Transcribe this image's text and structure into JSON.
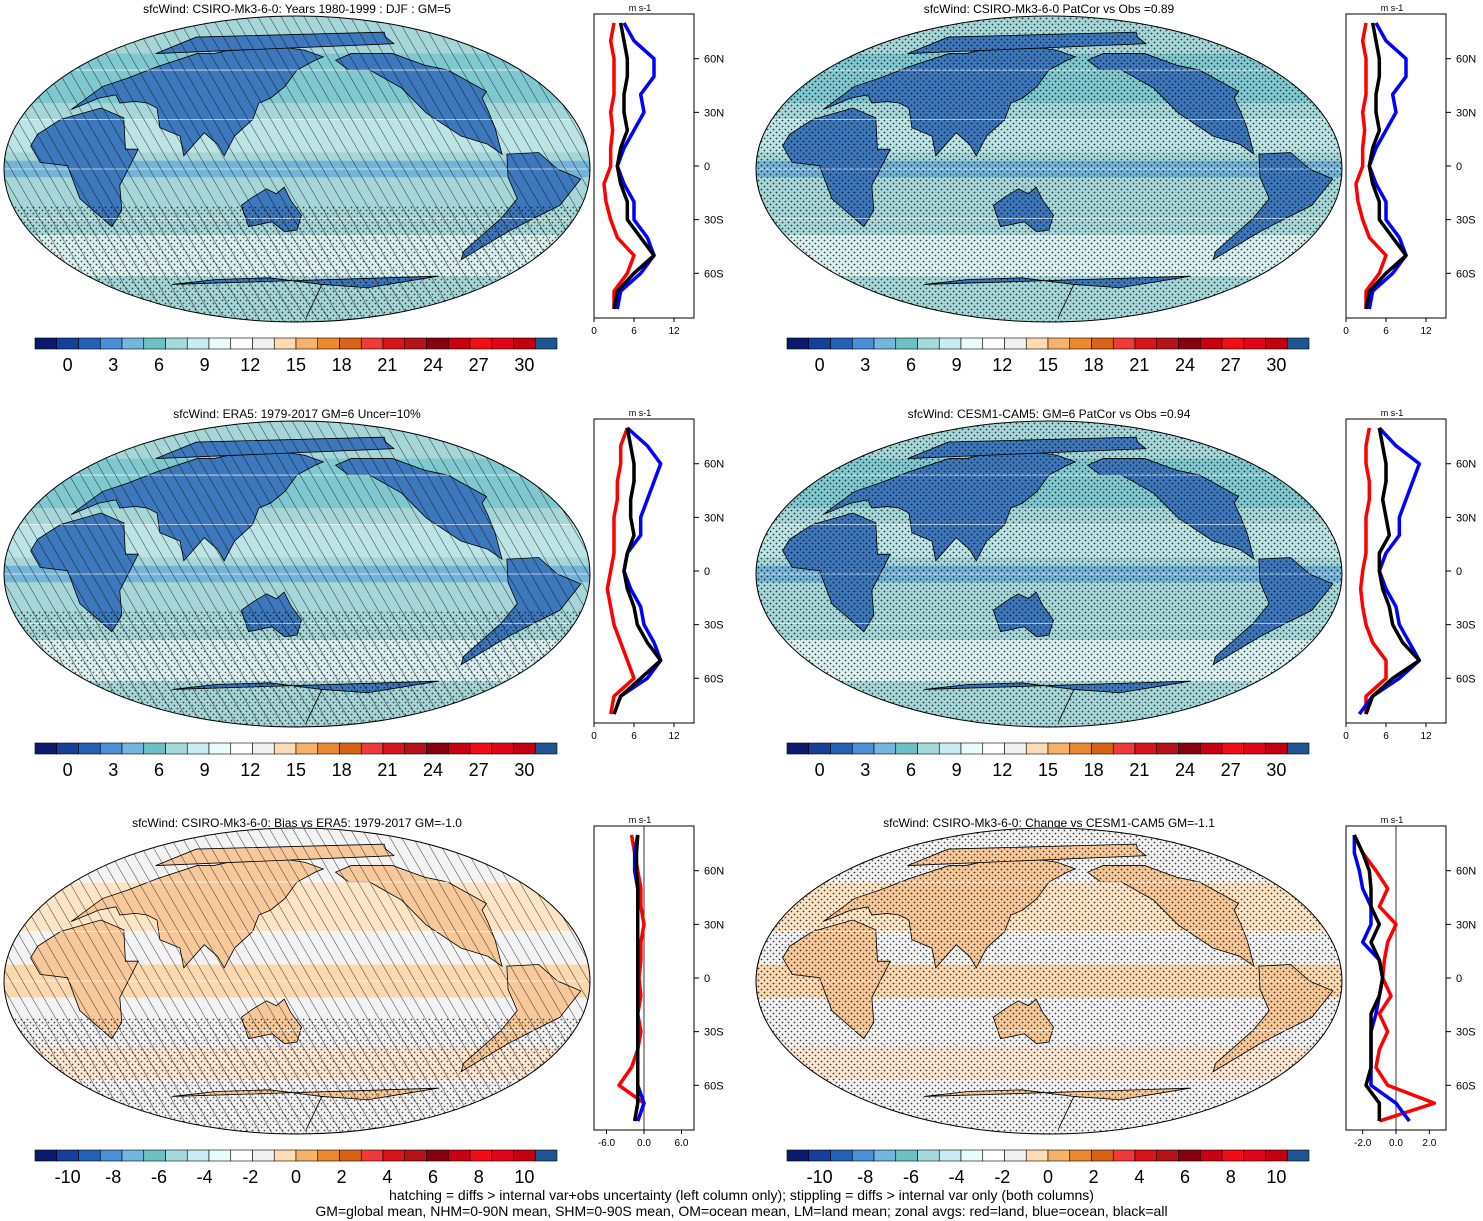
{
  "footer": {
    "line1": "hatching = diffs > internal var+obs uncertainty (left column only); stippling = diffs > internal var only (both columns)",
    "line2": "GM=global mean, NHM=0-90N mean, SHM=0-90S mean, OM=ocean mean, LM=land mean; zonal avgs: red=land, blue=ocean, black=all"
  },
  "units_label": "m s-1",
  "lat_labels": [
    "60N",
    "30N",
    "0",
    "30S",
    "60S"
  ],
  "colors": {
    "land_fill": "#3d78bd",
    "ocean_fill_clim": "#a6d6d8",
    "ocean_fill_diff": "#f3f3f3",
    "land_fill_diff": "#f7c99a",
    "zonal_land": "#ff0000",
    "zonal_ocean": "#0000ff",
    "zonal_all": "#000000"
  },
  "colorbar_clim": {
    "labels": [
      "0",
      "3",
      "6",
      "9",
      "12",
      "15",
      "18",
      "21",
      "24",
      "27",
      "30"
    ],
    "colors": [
      "#0b1a6e",
      "#163f9c",
      "#2462b8",
      "#4b8fd8",
      "#72b6de",
      "#6cc1c5",
      "#a4dadb",
      "#c8ecf1",
      "#e9fbfb",
      "#ffffff",
      "#f1f1f1",
      "#fddbb4",
      "#f6b16b",
      "#ea8a2e",
      "#d66414",
      "#f03a3a",
      "#d9151b",
      "#b5131a",
      "#88000f",
      "#c90012",
      "#f10d16",
      "#e00516",
      "#c3000f",
      "#1e5590"
    ]
  },
  "colorbar_diff": {
    "labels": [
      "-10",
      "-8",
      "-6",
      "-4",
      "-2",
      "0",
      "2",
      "4",
      "6",
      "8",
      "10"
    ],
    "colors": [
      "#0b1a6e",
      "#163f9c",
      "#2462b8",
      "#4b8fd8",
      "#72b6de",
      "#6cc1c5",
      "#a4dadb",
      "#c8ecf1",
      "#e9fbfb",
      "#ffffff",
      "#f1f1f1",
      "#fddbb4",
      "#f6b16b",
      "#ea8a2e",
      "#d66414",
      "#f03a3a",
      "#d9151b",
      "#b5131a",
      "#88000f",
      "#c90012",
      "#f10d16",
      "#e00516",
      "#c3000f",
      "#1e5590"
    ]
  },
  "chart_data": [
    {
      "type": "heatmap",
      "title": "sfcWind: CSIRO-Mk3-6-0: Years 1980-1999 : DJF : GM=5",
      "pattern": "hatching",
      "colorbar": "clim",
      "zonal": {
        "xlim": [
          0,
          15
        ],
        "xticks": [
          "0",
          "6",
          "12"
        ],
        "zero_line": false,
        "lat": [
          80,
          70,
          60,
          50,
          40,
          30,
          20,
          10,
          0,
          -10,
          -20,
          -30,
          -40,
          -50,
          -60,
          -70,
          -80
        ],
        "land": [
          3,
          2.5,
          3,
          3,
          3,
          2.5,
          2.8,
          2.5,
          2.5,
          1.5,
          1.8,
          2.5,
          3.5,
          6,
          5,
          3,
          3
        ],
        "ocean": [
          4.5,
          6,
          9,
          9,
          7,
          7.5,
          6,
          4.5,
          3.5,
          4.5,
          6,
          6,
          8,
          9,
          7,
          4,
          3.5
        ],
        "all": [
          4,
          4.5,
          5,
          5,
          4.5,
          4.5,
          5,
          4,
          3.5,
          4,
          5,
          5,
          7,
          9,
          6,
          3.5,
          3
        ]
      }
    },
    {
      "type": "heatmap",
      "title": "sfcWind: CSIRO-Mk3-6-0 PatCor vs Obs =0.89",
      "pattern": "stippling",
      "colorbar": "clim",
      "zonal": {
        "xlim": [
          0,
          15
        ],
        "xticks": [
          "0",
          "6",
          "12"
        ],
        "zero_line": false,
        "lat": [
          80,
          70,
          60,
          50,
          40,
          30,
          20,
          10,
          0,
          -10,
          -20,
          -30,
          -40,
          -50,
          -60,
          -70,
          -80
        ],
        "land": [
          3,
          2.5,
          3,
          3,
          3,
          2.5,
          2.8,
          2.5,
          2.5,
          1.5,
          1.8,
          2.5,
          3.5,
          6,
          5,
          3,
          3
        ],
        "ocean": [
          4.5,
          6,
          9,
          9,
          7,
          7.5,
          6,
          4.5,
          3.5,
          4.5,
          6,
          6,
          8,
          9,
          7,
          4,
          3.5
        ],
        "all": [
          4,
          4.5,
          5,
          5,
          4.5,
          4.5,
          5,
          4,
          3.5,
          4,
          5,
          5,
          7,
          9,
          6,
          3.5,
          3
        ]
      }
    },
    {
      "type": "heatmap",
      "title": "sfcWind: ERA5: 1979-2017 GM=6 Uncer=10%",
      "pattern": "hatching",
      "colorbar": "clim",
      "zonal": {
        "xlim": [
          0,
          15
        ],
        "xticks": [
          "0",
          "6",
          "12"
        ],
        "zero_line": false,
        "lat": [
          80,
          70,
          60,
          50,
          40,
          30,
          20,
          10,
          0,
          -10,
          -20,
          -30,
          -40,
          -50,
          -60,
          -70,
          -80
        ],
        "land": [
          5,
          4,
          4,
          3.5,
          3.5,
          3,
          3,
          3,
          2.5,
          2,
          2.5,
          3,
          4,
          5,
          6,
          3,
          2.5
        ],
        "ocean": [
          5,
          8,
          10,
          9,
          8,
          7,
          7,
          5,
          4.5,
          5.5,
          7,
          7.5,
          9,
          10,
          8,
          4,
          3
        ],
        "all": [
          5,
          5.5,
          6,
          6,
          5.5,
          5.5,
          6,
          5,
          4.5,
          5,
          6,
          6.5,
          8,
          10,
          7,
          4,
          3
        ]
      }
    },
    {
      "type": "heatmap",
      "title": "sfcWind: CESM1-CAM5: GM=6 PatCor vs Obs =0.94",
      "pattern": "stippling",
      "colorbar": "clim",
      "zonal": {
        "xlim": [
          0,
          15
        ],
        "xticks": [
          "0",
          "6",
          "12"
        ],
        "zero_line": false,
        "lat": [
          80,
          70,
          60,
          50,
          40,
          30,
          20,
          10,
          0,
          -10,
          -20,
          -30,
          -40,
          -50,
          -60,
          -70,
          -80
        ],
        "land": [
          3.5,
          3,
          3,
          3.5,
          3.5,
          3,
          3,
          3,
          2.5,
          2.2,
          2.5,
          3,
          4,
          6,
          6,
          3,
          3
        ],
        "ocean": [
          5,
          7.5,
          11,
          10,
          9,
          8,
          8,
          6,
          5,
          6,
          7.5,
          8,
          9.5,
          11,
          8,
          4,
          2
        ],
        "all": [
          5,
          5.5,
          6,
          6,
          5.5,
          6,
          6.5,
          5,
          5,
          5.5,
          6.5,
          7,
          8.5,
          11,
          7,
          4,
          3
        ]
      }
    },
    {
      "type": "heatmap",
      "title": "sfcWind: CSIRO-Mk3-6-0: Bias vs ERA5: 1979-2017 GM=-1.0",
      "pattern": "hatching",
      "colorbar": "diff",
      "zonal": {
        "xlim": [
          -8,
          8
        ],
        "xticks": [
          "-6.0",
          "0.0",
          "6.0"
        ],
        "zero_line": true,
        "lat": [
          80,
          70,
          60,
          50,
          40,
          30,
          20,
          10,
          0,
          -10,
          -20,
          -30,
          -40,
          -50,
          -60,
          -70,
          -80
        ],
        "land": [
          -2,
          -1.5,
          -1,
          -0.5,
          -0.5,
          0,
          -0.5,
          -0.5,
          -0.8,
          -0.5,
          -1,
          -0.5,
          -1,
          -2,
          -4,
          0,
          -1
        ],
        "ocean": [
          -1,
          -1.5,
          -1.5,
          -1,
          -1,
          -1,
          -1,
          -1,
          -1,
          -1,
          -1,
          -1,
          -1,
          -1,
          -1,
          0,
          -1
        ],
        "all": [
          -1,
          -1.2,
          -1.2,
          -1,
          -1,
          -1,
          -1,
          -1,
          -1,
          -1,
          -1,
          -1,
          -1,
          -1,
          -1,
          -1,
          -1.5
        ]
      }
    },
    {
      "type": "heatmap",
      "title": "sfcWind: CSIRO-Mk3-6-0: Change vs CESM1-CAM5 GM=-1.1",
      "pattern": "stippling",
      "colorbar": "diff",
      "zonal": {
        "xlim": [
          -3,
          3
        ],
        "xticks": [
          "-2.0",
          "0.0",
          "2.0"
        ],
        "zero_line": true,
        "lat": [
          80,
          70,
          60,
          50,
          40,
          30,
          20,
          10,
          0,
          -10,
          -20,
          -30,
          -40,
          -50,
          -60,
          -70,
          -80
        ],
        "land": [
          -2.5,
          -2,
          -1.2,
          -0.5,
          -1,
          0,
          -0.5,
          -0.7,
          -0.8,
          -0.3,
          -1,
          -0.5,
          -1,
          -1.2,
          -0.5,
          2.3,
          -1
        ],
        "ocean": [
          -2.5,
          -2.5,
          -2.2,
          -2,
          -1.5,
          -1.5,
          -2,
          -1,
          -0.8,
          -1,
          -1.2,
          -1.5,
          -1.5,
          -1.5,
          -1.5,
          0,
          0.8
        ],
        "all": [
          -2.5,
          -2,
          -1.6,
          -1.5,
          -1.5,
          -1,
          -1.5,
          -1,
          -0.8,
          -1,
          -1.5,
          -1.5,
          -1.5,
          -1.5,
          -1.8,
          -1,
          -1
        ]
      }
    }
  ]
}
